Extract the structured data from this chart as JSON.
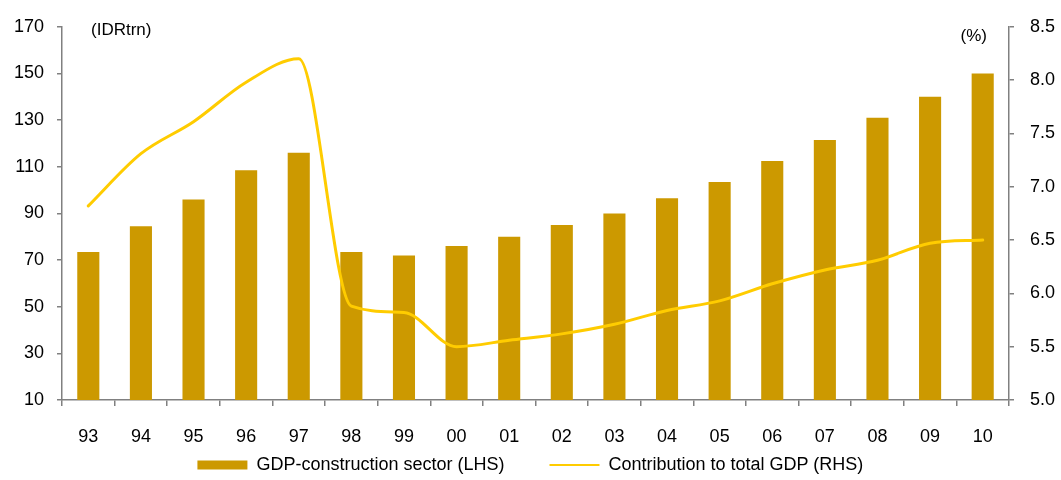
{
  "chart_data": {
    "type": "bar",
    "categories": [
      "93",
      "94",
      "95",
      "96",
      "97",
      "98",
      "99",
      "00",
      "01",
      "02",
      "03",
      "04",
      "05",
      "06",
      "07",
      "08",
      "09",
      "10"
    ],
    "series": [
      {
        "name": "GDP-construction sector (LHS)",
        "color": "#cc9900",
        "values": [
          73.5,
          84.5,
          96,
          108.5,
          116,
          73.5,
          72,
          76,
          80,
          85,
          90,
          96.5,
          103.5,
          112.5,
          121.5,
          131,
          140,
          150
        ]
      },
      {
        "name": "Contribution to total GDP (RHS)",
        "type": "line",
        "axis": "y2",
        "color": "#ffcc00",
        "values": [
          6.82,
          7.31,
          7.61,
          7.98,
          8.2,
          5.88,
          5.82,
          5.5,
          5.56,
          5.62,
          5.71,
          5.84,
          5.93,
          6.09,
          6.22,
          6.31,
          6.47,
          6.5
        ]
      }
    ],
    "ylabel": "(IDRtrn)",
    "y2label": "(%)",
    "ylim": [
      10,
      170
    ],
    "yticks": [
      10,
      30,
      50,
      70,
      90,
      110,
      130,
      150,
      170
    ],
    "y2lim": [
      5,
      8.5
    ],
    "y2ticks": [
      {
        "value": 5,
        "label": "5.0"
      },
      5.5,
      {
        "value": 6,
        "label": "6.0"
      },
      6.5,
      {
        "value": 7,
        "label": "7.0"
      },
      7.5,
      {
        "value": 8,
        "label": "8.0"
      },
      8.5
    ],
    "legend": "bottom"
  }
}
